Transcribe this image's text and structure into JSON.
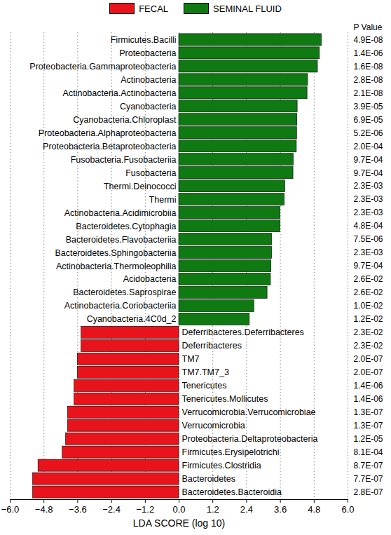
{
  "chart_data": {
    "type": "bar",
    "orientation": "horizontal",
    "legend": "top",
    "grid": true,
    "x_label": "LDA SCORE (log 10)",
    "xlim": [
      -6,
      6
    ],
    "xticks": [
      {
        "value": -6,
        "label": "−6.0"
      },
      {
        "value": -4.8,
        "label": "−4.8"
      },
      {
        "value": -3.6,
        "label": "−3.6"
      },
      {
        "value": -2.4,
        "label": "−2.4"
      },
      {
        "value": -1.2,
        "label": "−1.2"
      },
      {
        "value": 0,
        "label": "0.0"
      },
      {
        "value": 1.2,
        "label": "1.2"
      },
      {
        "value": 2.4,
        "label": "2.4"
      },
      {
        "value": 3.6,
        "label": "3.6"
      },
      {
        "value": 4.8,
        "label": "4.8"
      },
      {
        "value": 6,
        "label": "6.0"
      }
    ],
    "categories": [
      "Firmicutes.Bacilli",
      "Proteobacteria",
      "Proteobacteria.Gammaproteobacteria",
      "Actinobacteria",
      "Actinobacteria.Actinobacteria",
      "Cyanobacteria",
      "Cyanobacteria.Chloroplast",
      "Proteobacteria.Alphaproteobacteria",
      "Proteobacteria.Betaproteobacteria",
      "Fusobacteria.Fusobacteriia",
      "Fusobacteria",
      "Thermi.Deinococci",
      "Thermi",
      "Actinobacteria.Acidimicrobiia",
      "Bacteroidetes.Cytophagia",
      "Bacteroidetes.Flavobacteriia",
      "Bacteroidetes.Sphingobacteriia",
      "Actinobacteria.Thermoleophilia",
      "Acidobacteria",
      "Bacteroidetes.Saprospirae",
      "Actinobacteria.Coriobacteriia",
      "Cyanobacteria.4C0d_2",
      "Deferribacteres.Deferribacteres",
      "Deferribacteres",
      "TM7",
      "TM7.TM7_3",
      "Tenericutes",
      "Tenericutes.Mollicutes",
      "Verrucomicrobia.Verrucomicrobiae",
      "Verrucomicrobia",
      "Proteobacteria.Deltaproteobacteria",
      "Firmicutes.Erysipelotrichi",
      "Firmicutes.Clostridia",
      "Bacteroidetes",
      "Bacteroidetes.Bacteroidia"
    ],
    "series": [
      {
        "name": "FECAL",
        "color": "#e8131b",
        "values": [
          null,
          null,
          null,
          null,
          null,
          null,
          null,
          null,
          null,
          null,
          null,
          null,
          null,
          null,
          null,
          null,
          null,
          null,
          null,
          null,
          null,
          null,
          -3.47,
          -3.47,
          -3.6,
          -3.6,
          -3.72,
          -3.72,
          -3.95,
          -3.95,
          -4.02,
          -4.14,
          -5.0,
          -5.19,
          -5.19
        ]
      },
      {
        "name": "SEMINAL FLUID",
        "color": "#0f7a12",
        "values": [
          5.07,
          5.0,
          4.93,
          4.58,
          4.56,
          4.21,
          4.2,
          4.19,
          4.18,
          4.07,
          4.06,
          3.77,
          3.75,
          3.6,
          3.6,
          3.3,
          3.3,
          3.28,
          3.26,
          3.14,
          2.67,
          2.51,
          null,
          null,
          null,
          null,
          null,
          null,
          null,
          null,
          null,
          null,
          null,
          null,
          null
        ]
      }
    ],
    "p_value_title": "P Value",
    "p_values": [
      4.9e-08,
      1.4e-06,
      1.6e-08,
      2.8e-08,
      2.1e-08,
      3.9e-05,
      6.9e-05,
      5.2e-06,
      0.0002,
      0.00097,
      0.00097,
      0.0023,
      0.0023,
      0.0023,
      0.00048,
      7.5e-06,
      0.0023,
      0.00097,
      0.026,
      0.026,
      0.01,
      0.012,
      0.023,
      0.023,
      2e-07,
      2e-07,
      1.4e-06,
      1.4e-06,
      1.3e-07,
      1.3e-07,
      1.2e-05,
      0.00081,
      8.7e-07,
      7.7e-07,
      2.8e-07
    ],
    "p_value_labels": [
      "4.9E-08",
      "1.4E-06",
      "1.6E-08",
      "2.8E-08",
      "2.1E-08",
      "3.9E-05",
      "6.9E-05",
      "5.2E-06",
      "2.0E-04",
      "9.7E-04",
      "9.7E-04",
      "2.3E-03",
      "2.3E-03",
      "2.3E-03",
      "4.8E-04",
      "7.5E-06",
      "2.3E-03",
      "9.7E-04",
      "2.6E-02",
      "2.6E-02",
      "1.0E-02",
      "1.2E-02",
      "2.3E-02",
      "2.3E-02",
      "2.0E-07",
      "2.0E-07",
      "1.4E-06",
      "1.4E-06",
      "1.3E-07",
      "1.3E-07",
      "1.2E-05",
      "8.1E-04",
      "8.7E-07",
      "7.7E-07",
      "2.8E-07"
    ]
  }
}
